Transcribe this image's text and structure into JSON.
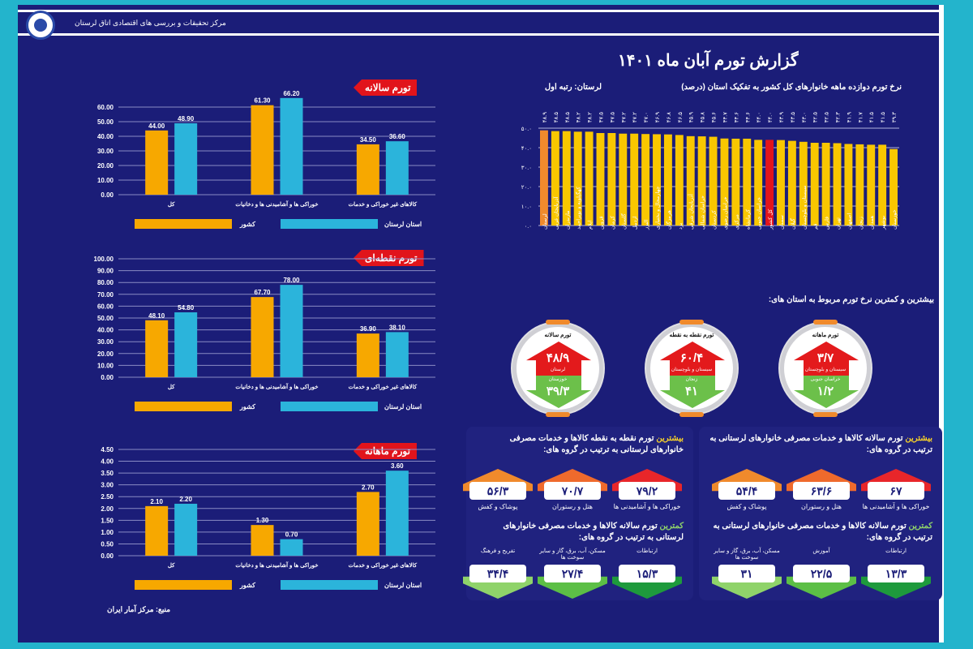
{
  "header": {
    "org": "مرکز تحقیقات و بررسی های اقتصادی اتاق لرستان"
  },
  "title": "گزارش تورم آبان ماه ۱۴۰۱",
  "colors": {
    "country": "#f7a800",
    "lorestan": "#2bb4db",
    "bar": "#f9c700",
    "highlight": "#f08a2c",
    "total": "#e3141b",
    "bg": "#1b1d78"
  },
  "chart_data": [
    {
      "type": "bar",
      "title": "تورم سالانه",
      "categories": [
        "کل",
        "خوراکی ها و آشامیدنی ها و دخانیات",
        "کالاهای غیر خوراکی و خدمات"
      ],
      "series": [
        {
          "name": "کشور",
          "values": [
            44.0,
            61.3,
            34.5
          ]
        },
        {
          "name": "استان لرستان",
          "values": [
            48.9,
            66.2,
            36.6
          ]
        }
      ],
      "yticks": [
        "0.00",
        "10.00",
        "20.00",
        "30.00",
        "40.00",
        "50.00",
        "60.00"
      ],
      "ylim": [
        0,
        70
      ]
    },
    {
      "type": "bar",
      "title": "تورم نقطه‌ای",
      "categories": [
        "کل",
        "خوراکی ها و آشامیدنی ها و دخانیات",
        "کالاهای غیر خوراکی و خدمات"
      ],
      "series": [
        {
          "name": "کشور",
          "values": [
            48.1,
            67.7,
            36.9
          ]
        },
        {
          "name": "استان لرستان",
          "values": [
            54.8,
            78.0,
            38.1
          ]
        }
      ],
      "yticks": [
        "0.00",
        "10.00",
        "20.00",
        "30.00",
        "40.00",
        "50.00",
        "60.00",
        "70.00",
        "80.00",
        "90.00",
        "100.00"
      ],
      "ylim": [
        0,
        100
      ]
    },
    {
      "type": "bar",
      "title": "تورم ماهانه",
      "categories": [
        "کل",
        "خوراکی ها و آشامیدنی ها و دخانیات",
        "کالاهای غیر خوراکی و خدمات"
      ],
      "series": [
        {
          "name": "کشور",
          "values": [
            2.1,
            1.3,
            2.7
          ]
        },
        {
          "name": "استان لرستان",
          "values": [
            2.2,
            0.7,
            3.6
          ]
        }
      ],
      "yticks": [
        "0.00",
        "0.50",
        "1.00",
        "1.50",
        "2.00",
        "2.50",
        "3.00",
        "3.50",
        "4.00",
        "4.50"
      ],
      "ylim": [
        0,
        4.5
      ]
    },
    {
      "type": "bar",
      "title": "نرخ تورم دوازده ماهه خانوارهای کل کشور به تفکیک استان (درصد)",
      "note": "لرستان: رتبه اول",
      "categories": [
        "لرستان",
        "آذربایجان غربی",
        "مازندران",
        "کهگیلویه و بویراحمد",
        "ایلام",
        "قزوین",
        "کرمان",
        "گلستان",
        "اردبیل",
        "البرز",
        "چهارمحال و بختیاری",
        "هرمزگان",
        "یزد",
        "آذربایجان شرقی",
        "خراسان شمالی",
        "کردستان",
        "خراسان رضوی",
        "مرکزی",
        "کرمانشاه",
        "خراسان جنوبی",
        "کل کشور",
        "سمنان",
        "گیلان",
        "سیستان و بلوچستان",
        "قم",
        "فارس",
        "تهران",
        "اصفهان",
        "زنجان",
        "همدان",
        "بوشهر",
        "خوزستان"
      ],
      "values": [
        48.9,
        48.5,
        48.5,
        48.2,
        48.2,
        47.5,
        47.5,
        47.2,
        47.2,
        47.0,
        46.9,
        46.8,
        46.5,
        45.9,
        45.8,
        45.6,
        44.7,
        44.6,
        44.6,
        44.0,
        44.0,
        43.9,
        43.5,
        43.0,
        42.5,
        42.5,
        42.3,
        41.9,
        41.7,
        41.5,
        41.5,
        39.3
      ],
      "yticks": [
        "۰.۰",
        "۱۰.۰",
        "۲۰.۰",
        "۳۰.۰",
        "۴۰.۰",
        "۵۰.۰"
      ],
      "ylim": [
        0,
        50
      ]
    }
  ],
  "extremes": {
    "heading": "بیشترین و کمترین نرخ تورم مربوط به استان های:",
    "items": [
      {
        "title": "تورم سالانه",
        "max": "۴۸/۹",
        "max_prov": "لرستان",
        "min_prov": "خوزستان",
        "min": "۳۹/۳"
      },
      {
        "title": "تورم نقطه به نقطه",
        "max": "۶۰/۴",
        "max_prov": "سیستان و بلوچستان",
        "min_prov": "زنجان",
        "min": "۴۱"
      },
      {
        "title": "تورم ماهانه",
        "max": "۳/۷",
        "max_prov": "سیستان و بلوچستان",
        "min_prov": "خراسان جنوبی",
        "min": "۱/۲"
      }
    ]
  },
  "panels": [
    {
      "top_hl": "بیشترین",
      "top_text": " تورم نقطه به نقطه کالاها و خدمات مصرفی خانوارهای لرستانی به ترتیب در گروه های:",
      "top": [
        {
          "v": "۷۹/۲",
          "l": "خوراکی ها و آشامیدنی ها"
        },
        {
          "v": "۷۰/۷",
          "l": "هتل و رستوران"
        },
        {
          "v": "۵۶/۳",
          "l": "پوشاک و کفش"
        }
      ],
      "low_hl": "کمترین",
      "low_text": " تورم سالانه کالاها و خدمات مصرفی خانوارهای لرستانی به ترتیب در گروه های:",
      "low": [
        {
          "v": "۱۵/۳",
          "l": "ارتباطات"
        },
        {
          "v": "۲۷/۴",
          "l": "مسکن، آب، برق، گاز و سایر سوخت ها"
        },
        {
          "v": "۳۴/۴",
          "l": "تفریح و فرهنگ"
        }
      ]
    },
    {
      "top_hl": "بیشترین",
      "top_text": " تورم سالانه کالاها و خدمات مصرفی خانوارهای لرستانی به ترتیب در گروه های:",
      "top": [
        {
          "v": "۶۷",
          "l": "خوراکی ها و آشامیدنی ها"
        },
        {
          "v": "۶۳/۶",
          "l": "هتل و رستوران"
        },
        {
          "v": "۵۴/۴",
          "l": "پوشاک و کفش"
        }
      ],
      "low_hl": "کمترین",
      "low_text": " تورم سالانه کالاها و خدمات مصرفی خانوارهای لرستانی به ترتیب در گروه های:",
      "low": [
        {
          "v": "۱۳/۳",
          "l": "ارتباطات"
        },
        {
          "v": "۲۲/۵",
          "l": "آموزش"
        },
        {
          "v": "۳۱",
          "l": "مسکن، آب، برق، گاز و سایر سوخت ها"
        }
      ]
    }
  ],
  "source": "منبع: مرکز آمار ایران"
}
